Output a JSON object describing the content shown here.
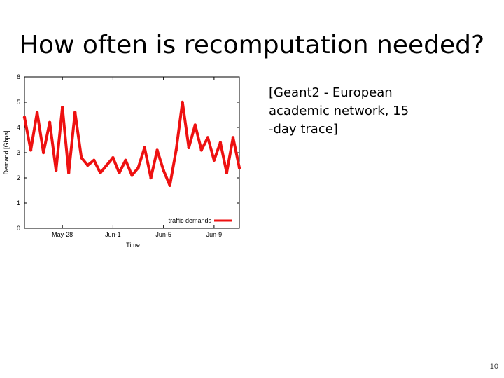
{
  "slide": {
    "title": "How often is recomputation needed?",
    "caption_lines": [
      "[Geant2 - European",
      "academic network, 15",
      "-day trace]"
    ],
    "page_number": "10"
  },
  "chart_data": {
    "type": "line",
    "xlabel": "Time",
    "ylabel": "Demand [Gbps]",
    "ylim": [
      0,
      6
    ],
    "yticks": [
      0,
      1,
      2,
      3,
      4,
      5,
      6
    ],
    "xlim": [
      "2009-05-25",
      "2009-06-11"
    ],
    "xticks": [
      "May-28",
      "Jun-1",
      "Jun-5",
      "Jun-9"
    ],
    "grid": false,
    "legend": "bottom-right",
    "series": [
      {
        "name": "traffic demands",
        "color": "#ee1111",
        "x": [
          "2009-05-25",
          "2009-05-25T12",
          "2009-05-26",
          "2009-05-26T12",
          "2009-05-27",
          "2009-05-27T12",
          "2009-05-28",
          "2009-05-28T12",
          "2009-05-29",
          "2009-05-29T12",
          "2009-05-30",
          "2009-05-30T12",
          "2009-05-31",
          "2009-05-31T12",
          "2009-06-01",
          "2009-06-01T12",
          "2009-06-02",
          "2009-06-02T12",
          "2009-06-03",
          "2009-06-03T12",
          "2009-06-04",
          "2009-06-04T12",
          "2009-06-05",
          "2009-06-05T12",
          "2009-06-06",
          "2009-06-06T12",
          "2009-06-07",
          "2009-06-07T12",
          "2009-06-08",
          "2009-06-08T12",
          "2009-06-09",
          "2009-06-09T12",
          "2009-06-10",
          "2009-06-10T12",
          "2009-06-11"
        ],
        "y": [
          4.4,
          3.1,
          4.6,
          3.0,
          4.2,
          2.3,
          4.8,
          2.2,
          4.6,
          2.8,
          2.5,
          2.7,
          2.2,
          2.5,
          2.8,
          2.2,
          2.7,
          2.1,
          2.4,
          3.2,
          2.0,
          3.1,
          2.3,
          1.7,
          3.1,
          5.0,
          3.2,
          4.1,
          3.1,
          3.6,
          2.7,
          3.4,
          2.2,
          3.6,
          2.4
        ]
      }
    ]
  }
}
